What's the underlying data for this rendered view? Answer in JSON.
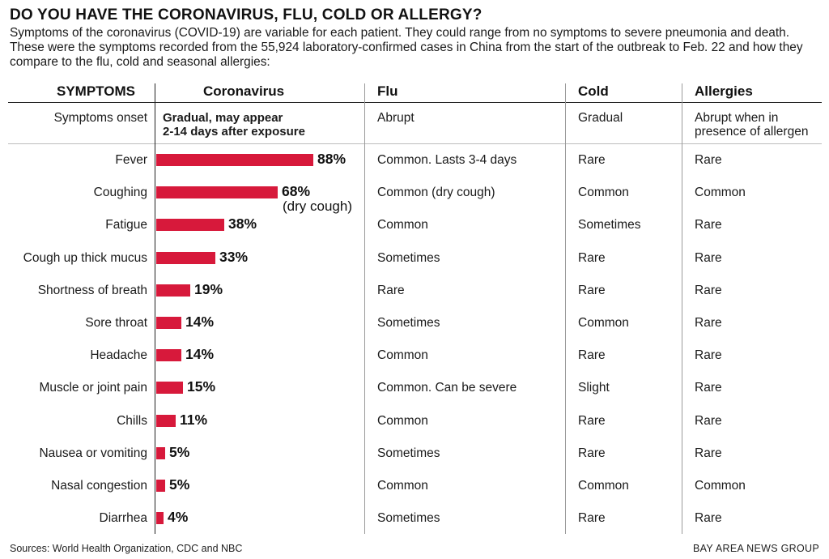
{
  "title": "DO YOU HAVE THE CORONAVIRUS, FLU, COLD OR ALLERGY?",
  "subtitle": "Symptoms of the coronavirus (COVID-19) are variable for each patient. They could range from no symptoms to severe pneumonia and death. These were the symptoms recorded from the 55,924 laboratory-confirmed cases in China from the start of the outbreak to Feb. 22 and how they compare to the flu, cold and seasonal allergies:",
  "headers": {
    "symptoms": "SYMPTOMS",
    "coronavirus": "Coronavirus",
    "flu": "Flu",
    "cold": "Cold",
    "allergies": "Allergies"
  },
  "onset": {
    "label": "Symptoms onset",
    "coronavirus_line1": "Gradual, may appear",
    "coronavirus_line2": "2-14 days after exposure",
    "flu": "Abrupt",
    "cold": "Gradual",
    "allergies_line1": "Abrupt when in",
    "allergies_line2": "presence of allergen"
  },
  "rows": [
    {
      "symptom": "Fever",
      "pct_label": "88%",
      "note": "",
      "flu": "Common. Lasts 3-4 days",
      "cold": "Rare",
      "allergies": "Rare"
    },
    {
      "symptom": "Coughing",
      "pct_label": "68%",
      "note": "(dry cough)",
      "flu": "Common (dry cough)",
      "cold": "Common",
      "allergies": "Common"
    },
    {
      "symptom": "Fatigue",
      "pct_label": "38%",
      "note": "",
      "flu": "Common",
      "cold": "Sometimes",
      "allergies": "Rare"
    },
    {
      "symptom": "Cough up thick mucus",
      "pct_label": "33%",
      "note": "",
      "flu": "Sometimes",
      "cold": "Rare",
      "allergies": "Rare"
    },
    {
      "symptom": "Shortness of breath",
      "pct_label": "19%",
      "note": "",
      "flu": "Rare",
      "cold": "Rare",
      "allergies": "Rare"
    },
    {
      "symptom": "Sore throat",
      "pct_label": "14%",
      "note": "",
      "flu": "Sometimes",
      "cold": "Common",
      "allergies": "Rare"
    },
    {
      "symptom": "Headache",
      "pct_label": "14%",
      "note": "",
      "flu": "Common",
      "cold": "Rare",
      "allergies": "Rare"
    },
    {
      "symptom": "Muscle or joint pain",
      "pct_label": "15%",
      "note": "",
      "flu": "Common. Can be severe",
      "cold": "Slight",
      "allergies": "Rare"
    },
    {
      "symptom": "Chills",
      "pct_label": "11%",
      "note": "",
      "flu": "Common",
      "cold": "Rare",
      "allergies": "Rare"
    },
    {
      "symptom": "Nausea or vomiting",
      "pct_label": "5%",
      "note": "",
      "flu": "Sometimes",
      "cold": "Rare",
      "allergies": "Rare"
    },
    {
      "symptom": "Nasal congestion",
      "pct_label": "5%",
      "note": "",
      "flu": "Common",
      "cold": "Common",
      "allergies": "Common"
    },
    {
      "symptom": "Diarrhea",
      "pct_label": "4%",
      "note": "",
      "flu": "Sometimes",
      "cold": "Rare",
      "allergies": "Rare"
    }
  ],
  "chart_data": {
    "type": "bar",
    "orientation": "horizontal",
    "categories": [
      "Fever",
      "Coughing",
      "Fatigue",
      "Cough up thick mucus",
      "Shortness of breath",
      "Sore throat",
      "Headache",
      "Muscle or joint pain",
      "Chills",
      "Nausea or vomiting",
      "Nasal congestion",
      "Diarrhea"
    ],
    "values": [
      88,
      68,
      38,
      33,
      19,
      14,
      14,
      15,
      11,
      5,
      5,
      4
    ],
    "unit": "%",
    "bar_color": "#d7193b",
    "grid": false,
    "xlim": [
      0,
      100
    ]
  },
  "footer": {
    "source": "Sources: World Health Organization, CDC and NBC",
    "credit": "BAY AREA NEWS GROUP"
  }
}
